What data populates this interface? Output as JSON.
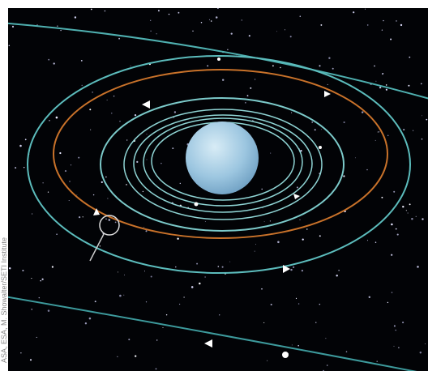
{
  "credit": "ASA, ESA, M. Showalter/SETI Institute"
}
